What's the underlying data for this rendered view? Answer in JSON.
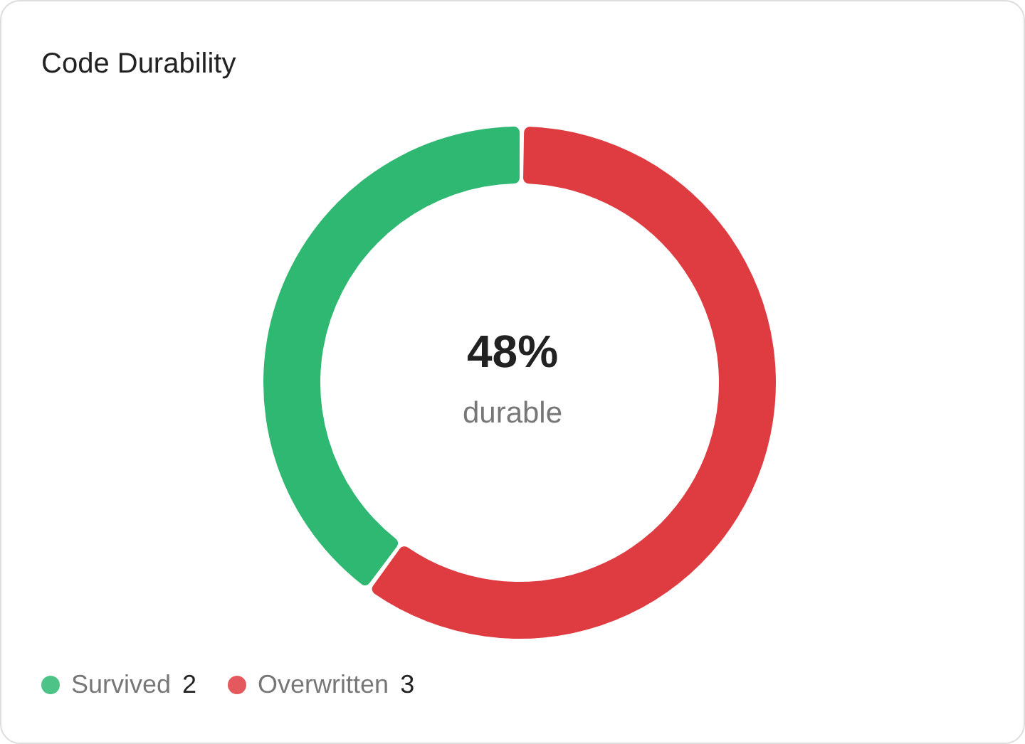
{
  "chart_data": {
    "type": "donut",
    "title": "Code Durability",
    "categories": [
      "Survived",
      "Overwritten"
    ],
    "values": [
      2,
      3
    ],
    "colors": [
      "#2fb872",
      "#df3c42"
    ],
    "annotations": [
      "48%",
      "durable"
    ],
    "data_labels": true,
    "legend": "bottom left"
  }
}
